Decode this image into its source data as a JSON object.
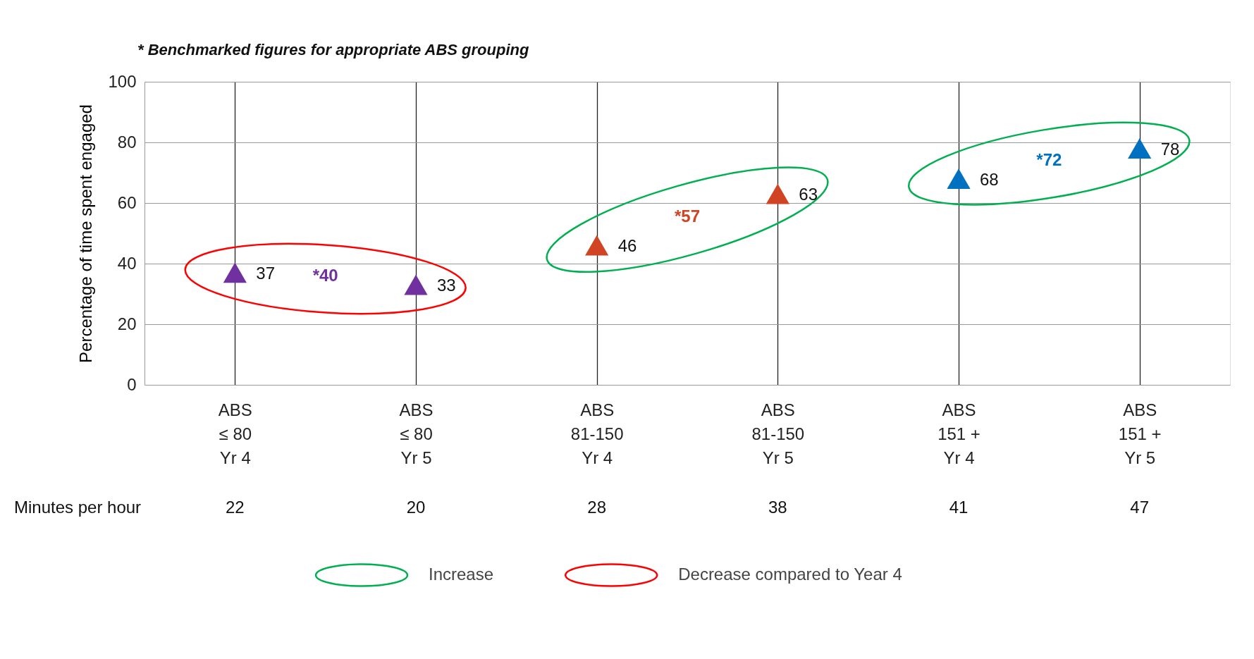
{
  "chart_data": {
    "type": "scatter",
    "ylabel": "Percentage of time spent engaged",
    "categories": [
      "ABS\n≤ 80\nYr 4",
      "ABS\n≤ 80\nYr 5",
      "ABS\n81-150\nYr 4",
      "ABS\n81-150\nYr 5",
      "ABS\n151 +\nYr 4",
      "ABS\n151 +\nYr 5"
    ],
    "values": [
      37,
      33,
      46,
      63,
      68,
      78
    ],
    "colors": [
      "#7030a0",
      "#7030a0",
      "#d04423",
      "#d04423",
      "#0070c0",
      "#0070c0"
    ],
    "marker": "triangle",
    "data_labels": true,
    "ylim": [
      0,
      100
    ],
    "yticks": [
      0,
      20,
      40,
      60,
      80,
      100
    ],
    "grid": true,
    "annotations": [
      "* Benchmarked figures for appropriate ABS grouping",
      "*40",
      "*57",
      "*72",
      "Minutes per hour",
      "22",
      "20",
      "28",
      "38",
      "41",
      "47",
      "Increase",
      "Decrease compared to Year 4"
    ]
  }
}
